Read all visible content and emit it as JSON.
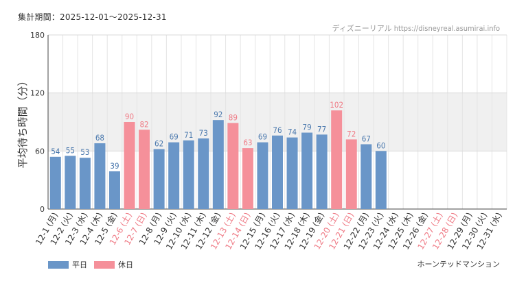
{
  "header": {
    "period": "集計期間：2025-12-01～2025-12-31",
    "source": "ディズニーリアル https://disneyreal.asumirai.info"
  },
  "footer": {
    "attraction": "ホーンテッドマンション"
  },
  "legend": {
    "weekday": "平日",
    "holiday": "休日"
  },
  "colors": {
    "weekday": "#6a96c8",
    "holiday": "#f5909a",
    "weekday_text": "#4a78ad",
    "holiday_text": "#ef7a85",
    "band": "#f0f0f0"
  },
  "chart_data": {
    "type": "bar",
    "title": "",
    "xlabel": "",
    "ylabel": "平均待ち時間（分）",
    "ylim": [
      0,
      180
    ],
    "yticks": [
      0,
      60,
      120,
      180
    ],
    "shaded_band": [
      60,
      120
    ],
    "categories": [
      "12-1 (月)",
      "12-2 (火)",
      "12-3 (水)",
      "12-4 (木)",
      "12-5 (金)",
      "12-6 (土)",
      "12-7 (日)",
      "12-8 (月)",
      "12-9 (火)",
      "12-10 (水)",
      "12-11 (木)",
      "12-12 (金)",
      "12-13 (土)",
      "12-14 (日)",
      "12-15 (月)",
      "12-16 (火)",
      "12-17 (水)",
      "12-18 (木)",
      "12-19 (金)",
      "12-20 (土)",
      "12-21 (日)",
      "12-22 (月)",
      "12-23 (火)",
      "12-24 (水)",
      "12-25 (木)",
      "12-26 (金)",
      "12-27 (土)",
      "12-28 (日)",
      "12-29 (月)",
      "12-30 (火)",
      "12-31 (水)"
    ],
    "values": [
      54,
      55,
      53,
      68,
      39,
      90,
      82,
      62,
      69,
      71,
      73,
      92,
      89,
      63,
      69,
      76,
      74,
      79,
      77,
      102,
      72,
      67,
      60,
      null,
      null,
      null,
      null,
      null,
      null,
      null,
      null
    ],
    "holiday": [
      false,
      false,
      false,
      false,
      false,
      true,
      true,
      false,
      false,
      false,
      false,
      false,
      true,
      true,
      false,
      false,
      false,
      false,
      false,
      true,
      true,
      false,
      false,
      false,
      false,
      false,
      true,
      true,
      false,
      false,
      false
    ],
    "series": [
      {
        "name": "平日"
      },
      {
        "name": "休日"
      }
    ]
  }
}
